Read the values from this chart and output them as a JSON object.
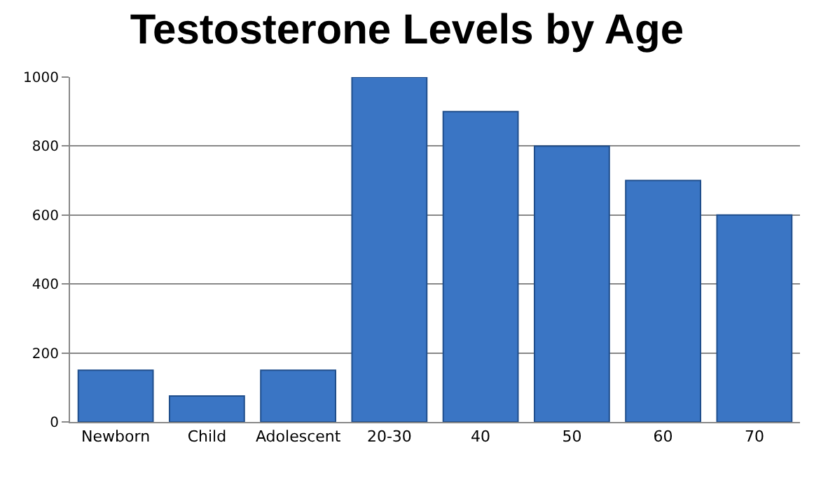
{
  "chart_data": {
    "type": "bar",
    "title": "Testosterone Levels by Age",
    "categories": [
      "Newborn",
      "Child",
      "Adolescent",
      "20-30",
      "40",
      "50",
      "60",
      "70"
    ],
    "values": [
      150,
      75,
      150,
      1000,
      900,
      800,
      700,
      600
    ],
    "color": "#3a75c4",
    "ylim": [
      0,
      1000
    ],
    "yticks": [
      0,
      200,
      400,
      600,
      800,
      1000
    ],
    "grid": "y"
  }
}
